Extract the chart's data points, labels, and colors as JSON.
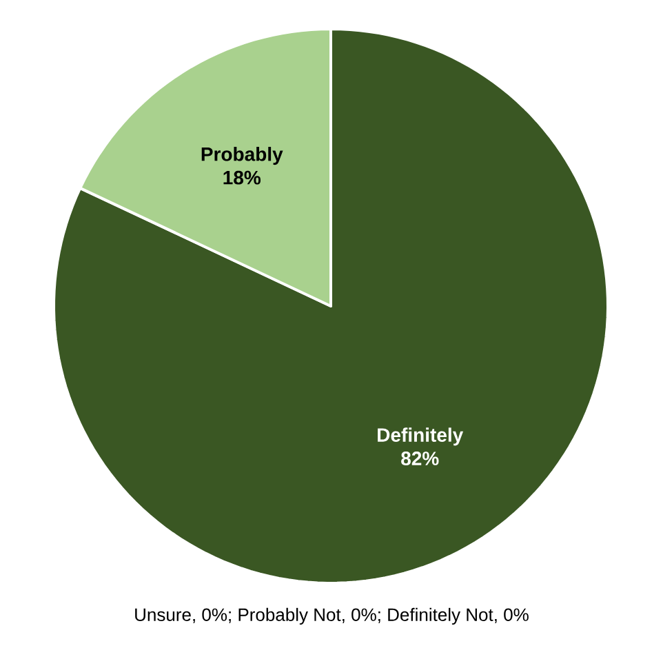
{
  "chart_data": {
    "type": "pie",
    "categories": [
      "Definitely",
      "Probably"
    ],
    "values": [
      82,
      18
    ],
    "colors": [
      "#3a5723",
      "#a9d18e"
    ],
    "value_labels": [
      "82%",
      "18%"
    ],
    "annotations": [
      "Unsure, 0%;  Probably Not, 0%; Definitely Not, 0%"
    ]
  }
}
